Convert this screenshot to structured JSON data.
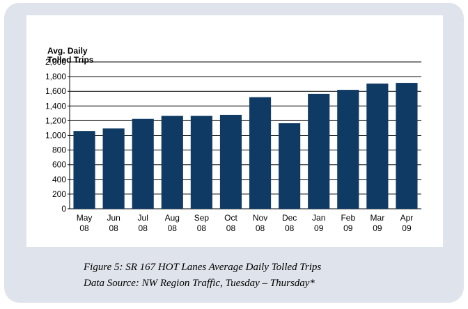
{
  "chart_data": {
    "type": "bar",
    "title": "Figure 5: SR 167 HOT Lanes Average Daily Tolled Trips",
    "subtitle": "Data Source: NW Region Traffic, Tuesday – Thursday*",
    "ylabel": [
      "Avg. Daily",
      "Tolled Trips"
    ],
    "categories": [
      [
        "May",
        "08"
      ],
      [
        "Jun",
        "08"
      ],
      [
        "Jul",
        "08"
      ],
      [
        "Aug",
        "08"
      ],
      [
        "Sep",
        "08"
      ],
      [
        "Oct",
        "08"
      ],
      [
        "Nov",
        "08"
      ],
      [
        "Dec",
        "08"
      ],
      [
        "Jan",
        "09"
      ],
      [
        "Feb",
        "09"
      ],
      [
        "Mar",
        "09"
      ],
      [
        "Apr",
        "09"
      ]
    ],
    "values": [
      1060,
      1095,
      1225,
      1265,
      1265,
      1280,
      1520,
      1165,
      1565,
      1620,
      1705,
      1715
    ],
    "color": "#0f3a63",
    "ylim": [
      0,
      2000
    ],
    "yticks": [
      0,
      200,
      400,
      600,
      800,
      {
        "value": 1000,
        "label": "1,000"
      },
      {
        "value": 1200,
        "label": "1,200"
      },
      {
        "value": 1400,
        "label": "1,400"
      },
      {
        "value": 1600,
        "label": "1,600"
      },
      {
        "value": 1800,
        "label": "1,800"
      },
      {
        "value": 2000,
        "label": "2,000"
      }
    ],
    "grid": true
  }
}
